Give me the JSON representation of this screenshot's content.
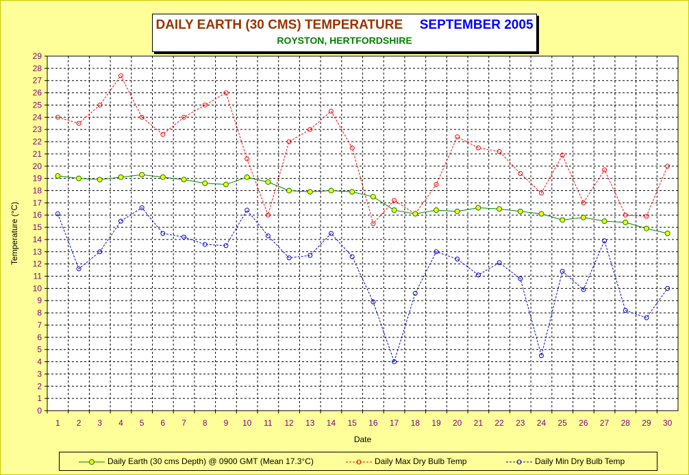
{
  "colors": {
    "background": "#ffff99",
    "grid": "#000000",
    "earth": "#008000",
    "earth_marker": "#ffff00",
    "max": "#ff0000",
    "min": "#0000cc",
    "title_main": "#993300",
    "title_month": "#0000ff",
    "subtitle": "#008000",
    "tick_label": "#800080"
  },
  "title": {
    "main": "DAILY EARTH (30 CMS) TEMPERATURE",
    "month": "SEPTEMBER 2005",
    "subtitle": "ROYSTON, HERTFORDSHIRE"
  },
  "legend": {
    "earth": "Daily Earth (30 cms Depth) @ 0900 GMT (Mean 17.3°C)",
    "max": "Daily Max Dry Bulb Temp",
    "min": "Daily Min Dry Bulb Temp"
  },
  "chart_data": {
    "type": "line",
    "title": "DAILY EARTH (30 CMS) TEMPERATURE   SEPTEMBER 2005",
    "subtitle": "ROYSTON, HERTFORDSHIRE",
    "xlabel": "Date",
    "ylabel": "Temperature (°C)",
    "ylim": [
      0,
      29
    ],
    "grid": true,
    "legend_position": "bottom",
    "x": [
      1,
      2,
      3,
      4,
      5,
      6,
      7,
      8,
      9,
      10,
      11,
      12,
      13,
      14,
      15,
      16,
      17,
      18,
      19,
      20,
      21,
      22,
      23,
      24,
      25,
      26,
      27,
      28,
      29,
      30
    ],
    "series": [
      {
        "name": "Daily Earth (30 cms Depth) @ 0900 GMT (Mean 17.3°C)",
        "key": "earth",
        "values": [
          19.2,
          19.0,
          18.9,
          19.1,
          19.3,
          19.1,
          18.9,
          18.6,
          18.5,
          19.1,
          18.7,
          18.0,
          17.9,
          18.0,
          17.9,
          17.5,
          16.4,
          16.1,
          16.4,
          16.3,
          16.6,
          16.5,
          16.3,
          16.1,
          15.6,
          15.8,
          15.5,
          15.4,
          14.9,
          14.5
        ]
      },
      {
        "name": "Daily Max Dry Bulb Temp",
        "key": "max",
        "values": [
          24.0,
          23.5,
          25.0,
          27.4,
          24.0,
          22.6,
          24.0,
          25.0,
          26.0,
          20.6,
          16.0,
          22.0,
          23.0,
          24.5,
          21.5,
          15.3,
          17.2,
          16.1,
          18.5,
          22.4,
          21.5,
          21.2,
          19.4,
          17.8,
          20.9,
          17.0,
          19.7,
          16.0,
          15.9,
          20.0
        ]
      },
      {
        "name": "Daily Min Dry Bulb Temp",
        "key": "min",
        "values": [
          16.1,
          11.6,
          13.0,
          15.5,
          16.6,
          14.5,
          14.2,
          13.6,
          13.5,
          16.4,
          14.3,
          12.5,
          12.7,
          14.5,
          12.6,
          8.9,
          4.0,
          9.6,
          13.0,
          12.4,
          11.1,
          12.1,
          10.8,
          4.5,
          11.4,
          9.9,
          13.9,
          8.2,
          7.6,
          10.0
        ]
      }
    ]
  }
}
